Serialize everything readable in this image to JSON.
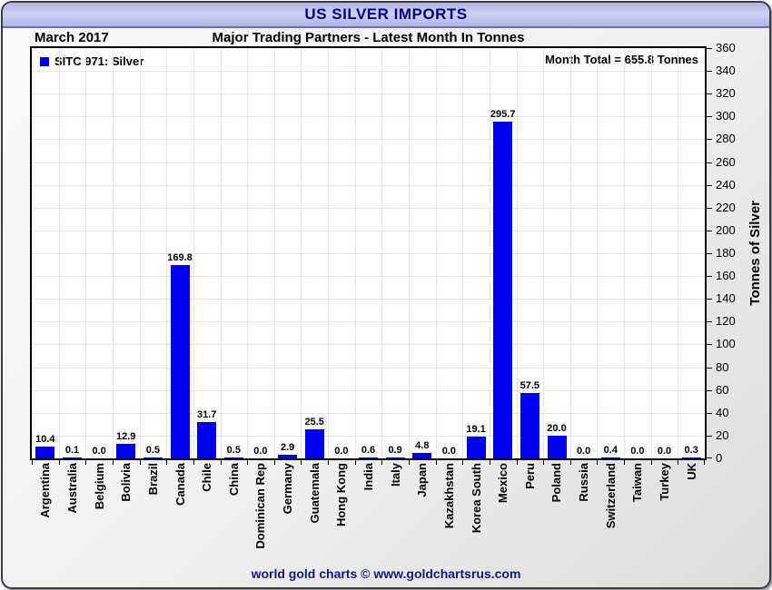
{
  "window": {
    "title": "US SILVER IMPORTS"
  },
  "header": {
    "date_label": "March 2017",
    "subtitle": "Major Trading Partners - Latest Month In Tonnes"
  },
  "legend": {
    "series_label": "SITC 971: Silver"
  },
  "annotations": {
    "month_total": "Month Total = 655.8 Tonnes"
  },
  "footer": {
    "credit": "world gold charts © www.goldchartsrus.com"
  },
  "colors": {
    "bar": "#0101f2",
    "title_text": "#00008b",
    "header_band": "#c0c0ee",
    "grid": "#dce9f5",
    "plot_border": "#000000",
    "footer_text": "#15158c"
  },
  "chart_data": {
    "type": "bar",
    "title": "US SILVER IMPORTS",
    "subtitle": "Major Trading Partners - Latest Month In Tonnes",
    "period": "March 2017",
    "month_total_tonnes": 655.8,
    "series_name": "SITC 971: Silver",
    "xlabel": "",
    "ylabel": "Tonnes of Silver",
    "ylim": [
      0,
      360
    ],
    "ytick_step": 20,
    "grid": true,
    "legend_position": "top-left",
    "value_labels": true,
    "categories": [
      "Argentina",
      "Australia",
      "Belgium",
      "Bolivia",
      "Brazil",
      "Canada",
      "Chile",
      "China",
      "Dominican Rep",
      "Germany",
      "Guatemala",
      "Hong Kong",
      "India",
      "Italy",
      "Japan",
      "Kazakhstan",
      "Korea South",
      "Mexico",
      "Peru",
      "Poland",
      "Russia",
      "Switzerland",
      "Taiwan",
      "Turkey",
      "UK"
    ],
    "values": [
      10.4,
      0.1,
      0.0,
      12.9,
      0.5,
      169.8,
      31.7,
      0.5,
      0.0,
      2.9,
      25.5,
      0.0,
      0.6,
      0.9,
      4.8,
      0.0,
      19.1,
      295.7,
      57.5,
      20.0,
      0.0,
      0.4,
      0.0,
      0.0,
      0.3
    ]
  }
}
